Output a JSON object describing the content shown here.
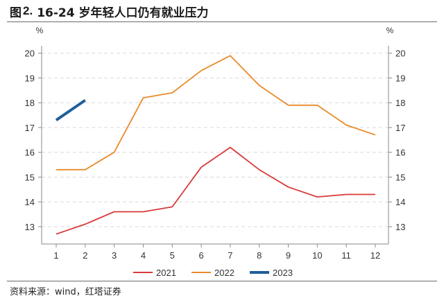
{
  "figure": {
    "prefix": "图",
    "number": "2.",
    "title": "16-24 岁年轻人口仍有就业压力",
    "source": "资料来源：wind，红塔证券"
  },
  "chart_data": {
    "type": "line",
    "x": [
      1,
      2,
      3,
      4,
      5,
      6,
      7,
      8,
      9,
      10,
      11,
      12
    ],
    "xlim": [
      1,
      12
    ],
    "ylim": [
      12.3,
      20.3
    ],
    "yticks": [
      13,
      14,
      15,
      16,
      17,
      18,
      19,
      20
    ],
    "ylabel_left": "%",
    "ylabel_right": "%",
    "grid": true,
    "legend_position": "bottom",
    "series": [
      {
        "name": "2021",
        "color": "#d9393a",
        "values": [
          12.7,
          13.1,
          13.6,
          13.6,
          13.8,
          15.4,
          16.2,
          15.3,
          14.6,
          14.2,
          14.3,
          14.3
        ]
      },
      {
        "name": "2022",
        "color": "#e98a2a",
        "values": [
          15.3,
          15.3,
          16.0,
          18.2,
          18.4,
          19.3,
          19.9,
          18.7,
          17.9,
          17.9,
          17.1,
          16.7
        ]
      },
      {
        "name": "2023",
        "color": "#1f5f99",
        "values": [
          17.3,
          18.1,
          null,
          null,
          null,
          null,
          null,
          null,
          null,
          null,
          null,
          null
        ]
      }
    ]
  }
}
